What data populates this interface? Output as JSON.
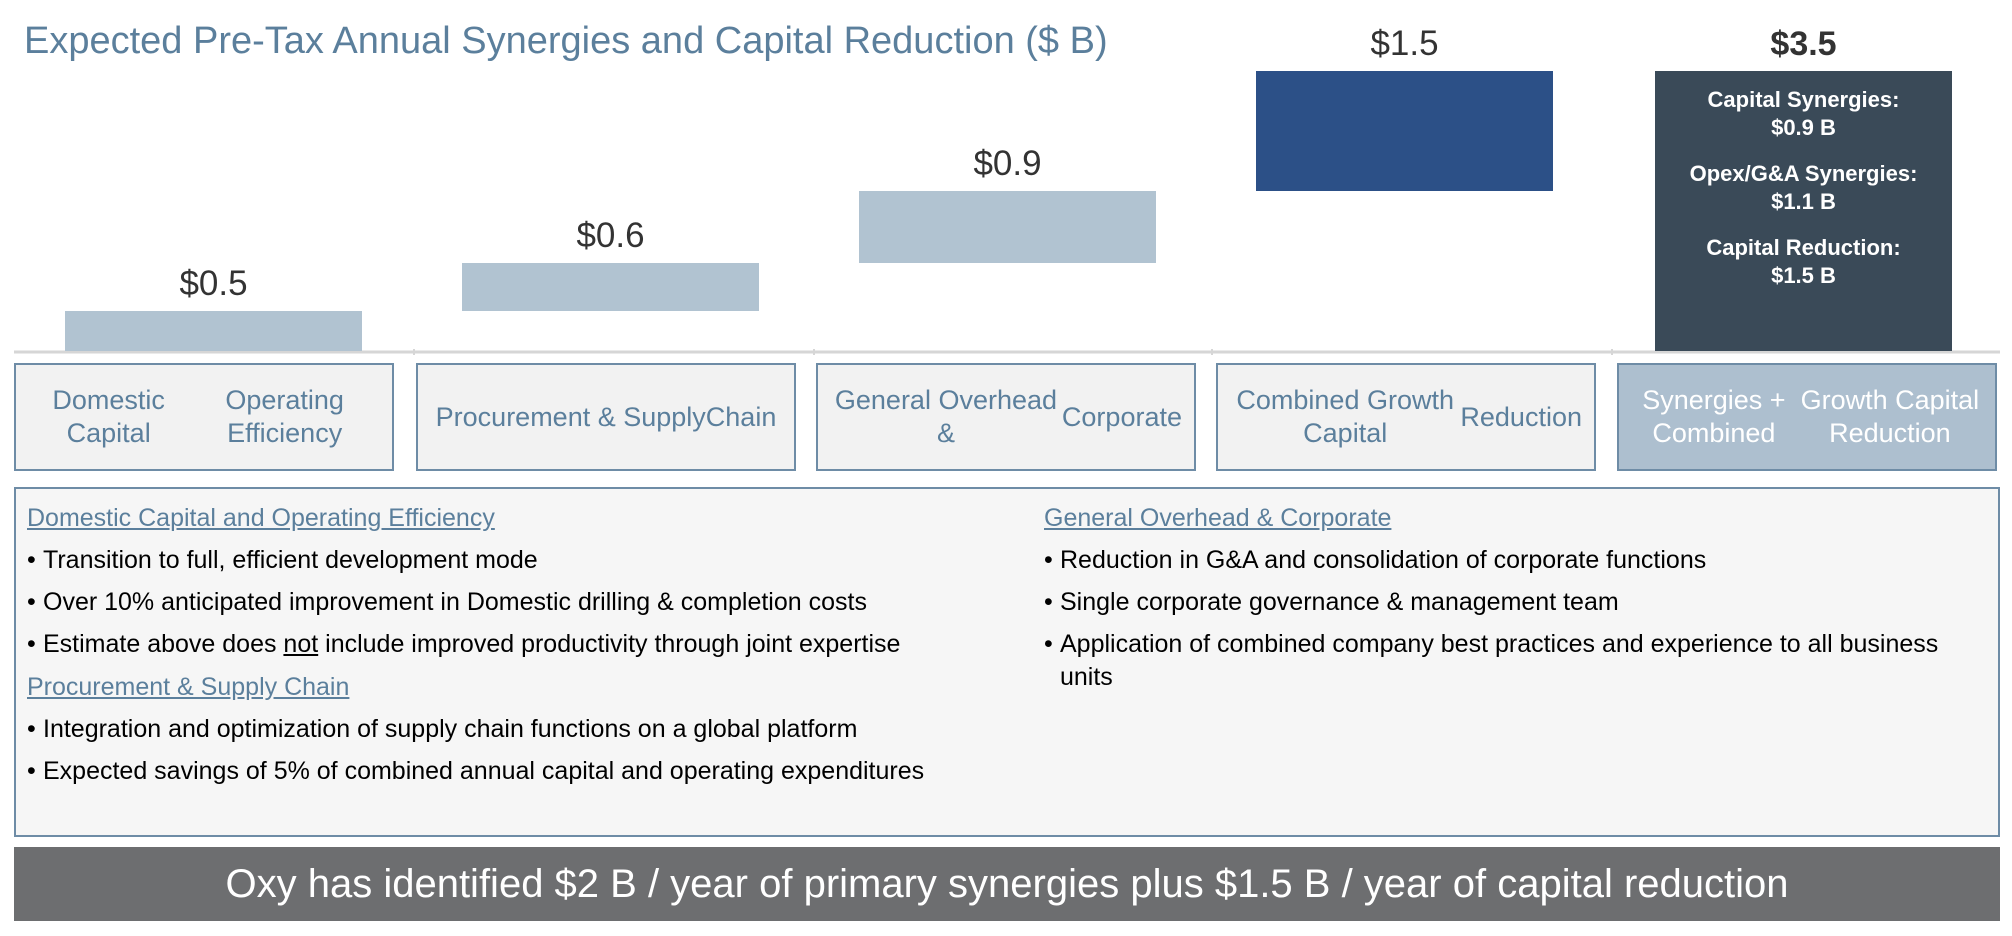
{
  "title": "Expected Pre-Tax Annual Synergies and Capital Reduction ($ B)",
  "chart_data": {
    "type": "bar",
    "subtype": "waterfall",
    "categories": [
      "Domestic Capital Operating Efficiency",
      "Procurement & Supply Chain",
      "General Overhead & Corporate",
      "Combined Growth Capital Reduction",
      "Synergies + Combined Growth Capital Reduction"
    ],
    "values": [
      0.5,
      0.6,
      0.9,
      1.5,
      3.5
    ],
    "cumulative_top": [
      0.5,
      1.1,
      2.0,
      3.5,
      3.5
    ],
    "value_labels": [
      "$0.5",
      "$0.6",
      "$0.9",
      "$1.5",
      "$3.5"
    ],
    "total_breakdown": [
      {
        "label": "Capital Synergies:",
        "value": "$0.9 B"
      },
      {
        "label": "Opex/G&A Synergies:",
        "value": "$1.1 B"
      },
      {
        "label": "Capital Reduction:",
        "value": "$1.5 B"
      }
    ],
    "colors": [
      "#b1c3d1",
      "#b1c3d1",
      "#b1c3d1",
      "#2c5087",
      "#3a4a58"
    ],
    "value_axis_range": [
      0,
      3.5
    ],
    "grid": false,
    "legend": "none"
  },
  "category_boxes": [
    [
      "Domestic Capital",
      "Operating Efficiency"
    ],
    [
      "Procurement & Supply",
      "Chain"
    ],
    [
      "General Overhead &",
      "Corporate"
    ],
    [
      "Combined Growth Capital",
      "Reduction"
    ],
    [
      "Synergies + Combined",
      "Growth Capital Reduction"
    ]
  ],
  "details": {
    "left": [
      {
        "title": "Domestic Capital and Operating Efficiency",
        "bullets": [
          "Transition to full, efficient development mode",
          "Over 10% anticipated improvement in Domestic drilling & completion costs",
          {
            "pre": "Estimate above does ",
            "underlined": "not",
            "post": " include improved productivity through joint expertise"
          }
        ]
      },
      {
        "title": "Procurement & Supply Chain",
        "bullets": [
          "Integration and optimization of supply chain functions on a global platform",
          "Expected savings of 5% of combined annual capital and operating expenditures"
        ]
      }
    ],
    "right": [
      {
        "title": "General Overhead & Corporate",
        "bullets": [
          "Reduction in G&A and consolidation of corporate functions",
          "Single corporate governance & management team",
          "Application of combined company best practices and experience to all business units"
        ]
      }
    ]
  },
  "banner": "Oxy has identified $2 B / year of primary synergies plus $1.5 B / year of capital reduction"
}
